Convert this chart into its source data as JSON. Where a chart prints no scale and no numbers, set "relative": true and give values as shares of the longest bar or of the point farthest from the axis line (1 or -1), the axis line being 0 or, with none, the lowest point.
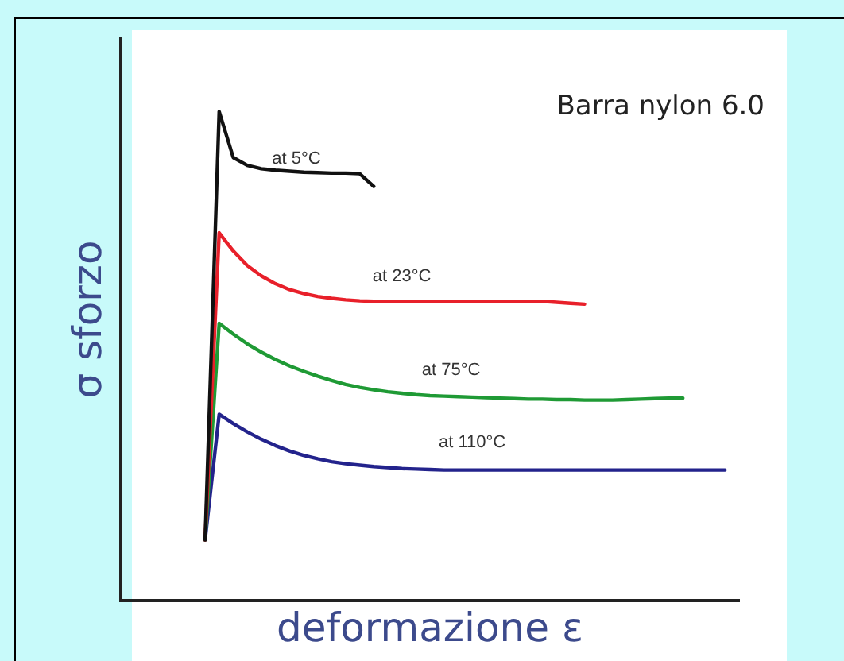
{
  "chart_data": {
    "type": "line",
    "relative": true,
    "title": "Barra nylon 6.0",
    "xlabel": "deformazione ε",
    "ylabel": "σ sforzo",
    "grid": false,
    "legend": false,
    "marker": "none",
    "line_style": "solid",
    "categories": [
      null,
      null,
      null,
      null,
      null,
      null,
      null,
      null,
      null,
      null,
      null,
      null,
      null,
      null,
      null,
      null,
      null,
      null,
      null,
      null,
      null,
      null,
      null,
      null,
      null,
      null,
      null,
      null,
      null,
      null,
      null,
      null,
      null,
      null,
      null,
      null,
      null,
      null,
      null,
      null,
      null,
      null,
      null,
      null,
      null
    ],
    "series": [
      {
        "name": "at 5°C",
        "color": "#111111",
        "values": [
          null,
          null,
          null,
          null,
          null,
          null,
          0.124,
          1.0,
          0.906,
          0.89,
          0.883,
          0.88,
          0.878,
          0.876,
          0.875,
          0.874,
          0.874,
          0.873,
          0.847,
          null,
          null,
          null,
          null,
          null,
          null,
          null,
          null,
          null,
          null,
          null,
          null,
          null,
          null,
          null,
          null,
          null,
          null,
          null,
          null,
          null,
          null,
          null,
          null,
          null,
          null
        ]
      },
      {
        "name": "at 23°C",
        "color": "#e8202a",
        "values": [
          null,
          null,
          null,
          null,
          null,
          null,
          0.124,
          0.752,
          0.715,
          0.685,
          0.664,
          0.648,
          0.636,
          0.628,
          0.622,
          0.618,
          0.615,
          0.613,
          0.612,
          0.612,
          0.612,
          0.612,
          0.612,
          0.612,
          0.612,
          0.612,
          0.612,
          0.612,
          0.612,
          0.612,
          0.612,
          0.61,
          0.608,
          0.606,
          null,
          null,
          null,
          null,
          null,
          null,
          null,
          null,
          null,
          null,
          null
        ]
      },
      {
        "name": "at 75°C",
        "color": "#1f9a35",
        "values": [
          null,
          null,
          null,
          null,
          null,
          null,
          0.124,
          0.567,
          0.545,
          0.525,
          0.508,
          0.493,
          0.48,
          0.469,
          0.459,
          0.45,
          0.442,
          0.436,
          0.431,
          0.427,
          0.424,
          0.421,
          0.419,
          0.418,
          0.417,
          0.416,
          0.415,
          0.414,
          0.413,
          0.412,
          0.412,
          0.411,
          0.411,
          0.41,
          0.41,
          0.41,
          0.411,
          0.412,
          0.413,
          0.414,
          0.414,
          null,
          null,
          null,
          null
        ]
      },
      {
        "name": "at 110°C",
        "color": "#23238c",
        "values": [
          null,
          null,
          null,
          null,
          null,
          null,
          0.124,
          0.381,
          0.362,
          0.345,
          0.33,
          0.317,
          0.306,
          0.297,
          0.29,
          0.284,
          0.28,
          0.277,
          0.274,
          0.272,
          0.27,
          0.269,
          0.268,
          0.267,
          0.267,
          0.267,
          0.267,
          0.267,
          0.267,
          0.267,
          0.267,
          0.267,
          0.267,
          0.267,
          0.267,
          0.267,
          0.267,
          0.267,
          0.267,
          0.267,
          0.267,
          0.267,
          0.267,
          0.267,
          null
        ]
      }
    ]
  }
}
